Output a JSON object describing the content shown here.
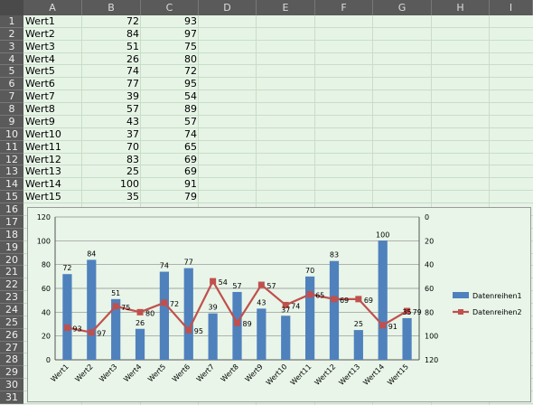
{
  "columns": [
    "A",
    "B",
    "C",
    "D",
    "E",
    "F",
    "G",
    "H",
    "I"
  ],
  "rows": [
    "1",
    "2",
    "3",
    "4",
    "5",
    "6",
    "7",
    "8",
    "9",
    "10",
    "11",
    "12",
    "13",
    "14",
    "15",
    "16",
    "17",
    "18",
    "19",
    "20",
    "21",
    "22",
    "23",
    "24",
    "25",
    "26",
    "27",
    "28",
    "29",
    "30",
    "31"
  ],
  "table": [
    {
      "label": "Wert1",
      "b": "72",
      "c": "93"
    },
    {
      "label": "Wert2",
      "b": "84",
      "c": "97"
    },
    {
      "label": "Wert3",
      "b": "51",
      "c": "75"
    },
    {
      "label": "Wert4",
      "b": "26",
      "c": "80"
    },
    {
      "label": "Wert5",
      "b": "74",
      "c": "72"
    },
    {
      "label": "Wert6",
      "b": "77",
      "c": "95"
    },
    {
      "label": "Wert7",
      "b": "39",
      "c": "54"
    },
    {
      "label": "Wert8",
      "b": "57",
      "c": "89"
    },
    {
      "label": "Wert9",
      "b": "43",
      "c": "57"
    },
    {
      "label": "Wert10",
      "b": "37",
      "c": "74"
    },
    {
      "label": "Wert11",
      "b": "70",
      "c": "65"
    },
    {
      "label": "Wert12",
      "b": "83",
      "c": "69"
    },
    {
      "label": "Wert13",
      "b": "25",
      "c": "69"
    },
    {
      "label": "Wert14",
      "b": "100",
      "c": "91"
    },
    {
      "label": "Wert15",
      "b": "35",
      "c": "79"
    }
  ],
  "chart_data": {
    "type": "bar",
    "categories": [
      "Wert1",
      "Wert2",
      "Wert3",
      "Wert4",
      "Wert5",
      "Wert6",
      "Wert7",
      "Wert8",
      "Wert9",
      "Wert10",
      "Wert11",
      "Wert12",
      "Wert13",
      "Wert14",
      "Wert15"
    ],
    "series": [
      {
        "name": "Datenreihen1",
        "type": "bar",
        "axis": "left",
        "color": "#4f81bd",
        "values": [
          72,
          84,
          51,
          26,
          74,
          77,
          39,
          57,
          43,
          37,
          70,
          83,
          25,
          100,
          35
        ]
      },
      {
        "name": "Datenreihen2",
        "type": "line",
        "axis": "right",
        "color": "#c0504d",
        "values": [
          93,
          97,
          75,
          80,
          72,
          95,
          54,
          89,
          57,
          74,
          65,
          69,
          69,
          91,
          79
        ]
      }
    ],
    "left_axis": {
      "min": 0,
      "max": 120,
      "ticks": [
        "0",
        "20",
        "40",
        "60",
        "80",
        "100",
        "120"
      ]
    },
    "right_axis": {
      "min": 0,
      "max": 120,
      "reversed": true,
      "ticks": [
        "0",
        "20",
        "40",
        "60",
        "80",
        "100",
        "120"
      ]
    },
    "grid": true,
    "legend": "right"
  }
}
